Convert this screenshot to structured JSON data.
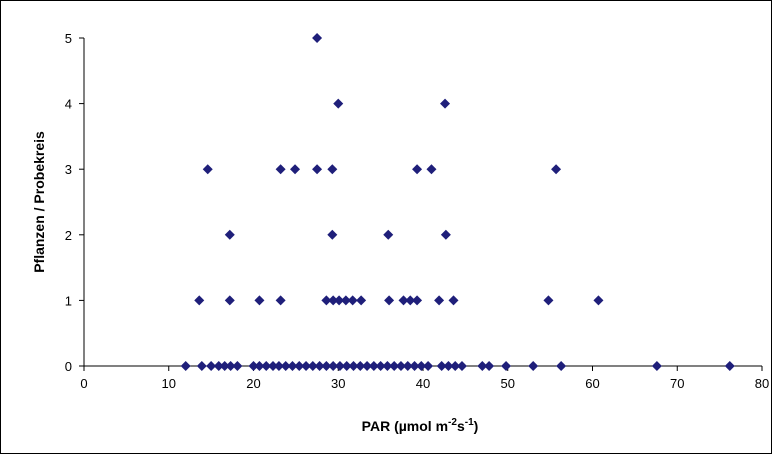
{
  "chart_data": {
    "type": "scatter",
    "title": "",
    "xlabel": "PAR (µmol m-2s-1)",
    "xlabel_parts": {
      "base": "PAR (µmol m",
      "sup1": "-2",
      "mid": "s",
      "sup2": "-1",
      "end": ")"
    },
    "ylabel": "Pflanzen / Probekreis",
    "xlim": [
      0,
      80
    ],
    "ylim": [
      0,
      5
    ],
    "xticks": [
      "0",
      "10",
      "20",
      "30",
      "40",
      "50",
      "60",
      "70",
      "80"
    ],
    "yticks": [
      "0",
      "1",
      "2",
      "3",
      "4",
      "5"
    ],
    "grid": false,
    "legend": "none",
    "marker": "diamond",
    "color": "#1f1f7a",
    "points": [
      {
        "x": 12.0,
        "y": 0
      },
      {
        "x": 13.9,
        "y": 0
      },
      {
        "x": 15.0,
        "y": 0
      },
      {
        "x": 15.9,
        "y": 0
      },
      {
        "x": 16.6,
        "y": 0
      },
      {
        "x": 17.3,
        "y": 0
      },
      {
        "x": 18.1,
        "y": 0
      },
      {
        "x": 20.0,
        "y": 0
      },
      {
        "x": 20.7,
        "y": 0
      },
      {
        "x": 21.5,
        "y": 0
      },
      {
        "x": 22.3,
        "y": 0
      },
      {
        "x": 23.0,
        "y": 0
      },
      {
        "x": 23.8,
        "y": 0
      },
      {
        "x": 24.6,
        "y": 0
      },
      {
        "x": 25.4,
        "y": 0
      },
      {
        "x": 26.2,
        "y": 0
      },
      {
        "x": 27.0,
        "y": 0
      },
      {
        "x": 27.8,
        "y": 0
      },
      {
        "x": 28.6,
        "y": 0
      },
      {
        "x": 29.4,
        "y": 0
      },
      {
        "x": 30.2,
        "y": 0
      },
      {
        "x": 31.0,
        "y": 0
      },
      {
        "x": 31.8,
        "y": 0
      },
      {
        "x": 32.6,
        "y": 0
      },
      {
        "x": 33.4,
        "y": 0
      },
      {
        "x": 34.2,
        "y": 0
      },
      {
        "x": 35.0,
        "y": 0
      },
      {
        "x": 35.8,
        "y": 0
      },
      {
        "x": 36.6,
        "y": 0
      },
      {
        "x": 37.4,
        "y": 0
      },
      {
        "x": 38.2,
        "y": 0
      },
      {
        "x": 39.0,
        "y": 0
      },
      {
        "x": 39.8,
        "y": 0
      },
      {
        "x": 40.6,
        "y": 0
      },
      {
        "x": 42.2,
        "y": 0
      },
      {
        "x": 43.0,
        "y": 0
      },
      {
        "x": 43.8,
        "y": 0
      },
      {
        "x": 44.6,
        "y": 0
      },
      {
        "x": 47.0,
        "y": 0
      },
      {
        "x": 47.8,
        "y": 0
      },
      {
        "x": 49.8,
        "y": 0
      },
      {
        "x": 53.0,
        "y": 0
      },
      {
        "x": 56.3,
        "y": 0
      },
      {
        "x": 67.6,
        "y": 0
      },
      {
        "x": 76.2,
        "y": 0
      },
      {
        "x": 13.6,
        "y": 1
      },
      {
        "x": 17.2,
        "y": 1
      },
      {
        "x": 20.7,
        "y": 1
      },
      {
        "x": 23.2,
        "y": 1
      },
      {
        "x": 28.6,
        "y": 1
      },
      {
        "x": 29.4,
        "y": 1
      },
      {
        "x": 30.1,
        "y": 1
      },
      {
        "x": 30.9,
        "y": 1
      },
      {
        "x": 31.7,
        "y": 1
      },
      {
        "x": 32.7,
        "y": 1
      },
      {
        "x": 36.0,
        "y": 1
      },
      {
        "x": 37.7,
        "y": 1
      },
      {
        "x": 38.5,
        "y": 1
      },
      {
        "x": 39.3,
        "y": 1
      },
      {
        "x": 41.9,
        "y": 1
      },
      {
        "x": 43.6,
        "y": 1
      },
      {
        "x": 54.8,
        "y": 1
      },
      {
        "x": 60.7,
        "y": 1
      },
      {
        "x": 17.2,
        "y": 2
      },
      {
        "x": 29.3,
        "y": 2
      },
      {
        "x": 35.9,
        "y": 2
      },
      {
        "x": 42.7,
        "y": 2
      },
      {
        "x": 14.6,
        "y": 3
      },
      {
        "x": 23.2,
        "y": 3
      },
      {
        "x": 24.9,
        "y": 3
      },
      {
        "x": 27.5,
        "y": 3
      },
      {
        "x": 29.3,
        "y": 3
      },
      {
        "x": 39.3,
        "y": 3
      },
      {
        "x": 41.0,
        "y": 3
      },
      {
        "x": 55.7,
        "y": 3
      },
      {
        "x": 30.0,
        "y": 4
      },
      {
        "x": 42.6,
        "y": 4
      },
      {
        "x": 27.5,
        "y": 5
      }
    ]
  }
}
